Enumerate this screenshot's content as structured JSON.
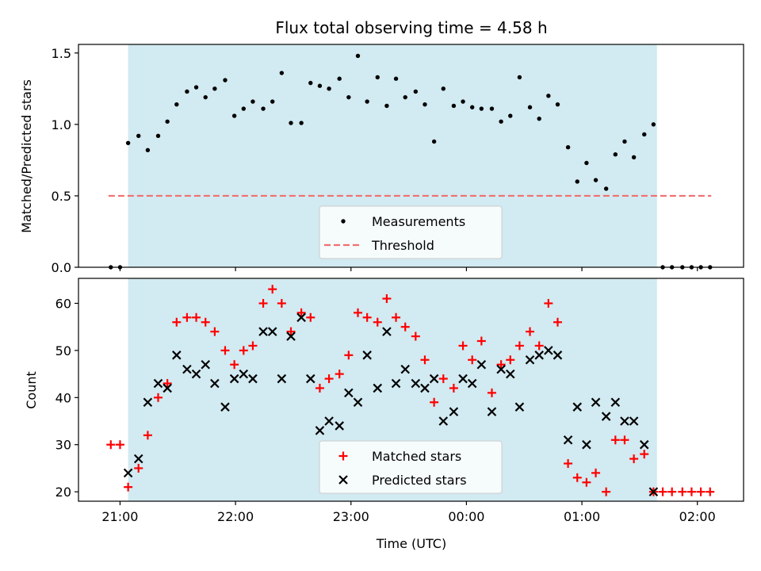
{
  "title": "Flux total observing time = 4.58 h",
  "colors": {
    "shade": "#add8e6",
    "measurement": "#000000",
    "threshold": "#f07070",
    "matched": "#ff0000",
    "predicted": "#000000"
  },
  "chart_data": [
    {
      "type": "scatter",
      "ylabel": "Matched/Predicted stars",
      "xlabel": "",
      "ylim": [
        0,
        1.56
      ],
      "yticks": [
        0.0,
        0.5,
        1.0,
        1.5
      ],
      "ytick_labels": [
        "0.0",
        "0.5",
        "1.0",
        "1.5"
      ],
      "shaded_span": [
        21.07,
        25.65
      ],
      "legend": {
        "placement": "lower-center",
        "entries": [
          "Measurements",
          "Threshold"
        ]
      },
      "threshold": {
        "name": "Threshold",
        "y": 0.5,
        "x_range": [
          20.9,
          26.12
        ]
      },
      "series": [
        {
          "name": "Measurements",
          "x": [
            20.92,
            21.0,
            21.07,
            21.16,
            21.24,
            21.33,
            21.41,
            21.49,
            21.58,
            21.66,
            21.74,
            21.82,
            21.91,
            21.99,
            22.07,
            22.15,
            22.24,
            22.32,
            22.4,
            22.48,
            22.57,
            22.65,
            22.73,
            22.81,
            22.9,
            22.98,
            23.06,
            23.14,
            23.23,
            23.31,
            23.39,
            23.47,
            23.56,
            23.64,
            23.72,
            23.8,
            23.89,
            23.97,
            24.05,
            24.13,
            24.22,
            24.3,
            24.38,
            24.46,
            24.55,
            24.63,
            24.71,
            24.79,
            24.88,
            24.96,
            25.04,
            25.12,
            25.21,
            25.29,
            25.37,
            25.45,
            25.54,
            25.62,
            25.7,
            25.78,
            25.87,
            25.95,
            26.03,
            26.11
          ],
          "y": [
            0.0,
            0.0,
            0.87,
            0.92,
            0.82,
            0.92,
            1.02,
            1.14,
            1.23,
            1.26,
            1.19,
            1.25,
            1.31,
            1.06,
            1.11,
            1.16,
            1.11,
            1.16,
            1.36,
            1.01,
            1.01,
            1.29,
            1.27,
            1.25,
            1.32,
            1.19,
            1.48,
            1.16,
            1.33,
            1.13,
            1.32,
            1.19,
            1.23,
            1.14,
            0.88,
            1.25,
            1.13,
            1.16,
            1.12,
            1.11,
            1.11,
            1.02,
            1.06,
            1.33,
            1.12,
            1.04,
            1.2,
            1.14,
            0.84,
            0.6,
            0.73,
            0.61,
            0.55,
            0.79,
            0.88,
            0.77,
            0.93,
            1.0,
            0.0,
            0.0,
            0.0,
            0.0,
            0.0,
            0.0
          ]
        }
      ]
    },
    {
      "type": "scatter",
      "ylabel": "Count",
      "xlabel": "Time (UTC)",
      "ylim": [
        18,
        65.3
      ],
      "yticks": [
        20,
        30,
        40,
        50,
        60
      ],
      "ytick_labels": [
        "20",
        "30",
        "40",
        "50",
        "60"
      ],
      "xlim": [
        20.64,
        26.4
      ],
      "xticks": [
        21,
        22,
        23,
        24,
        25,
        26
      ],
      "xtick_labels": [
        "21:00",
        "22:00",
        "23:00",
        "00:00",
        "01:00",
        "02:00"
      ],
      "shaded_span": [
        21.07,
        25.65
      ],
      "legend": {
        "placement": "lower-center",
        "entries": [
          "Matched stars",
          "Predicted stars"
        ]
      },
      "series": [
        {
          "name": "Matched stars",
          "x": [
            20.92,
            21.0,
            21.07,
            21.16,
            21.24,
            21.33,
            21.41,
            21.49,
            21.58,
            21.66,
            21.74,
            21.82,
            21.91,
            21.99,
            22.07,
            22.15,
            22.24,
            22.32,
            22.4,
            22.48,
            22.57,
            22.65,
            22.73,
            22.81,
            22.9,
            22.98,
            23.06,
            23.14,
            23.23,
            23.31,
            23.39,
            23.47,
            23.56,
            23.64,
            23.72,
            23.8,
            23.89,
            23.97,
            24.05,
            24.13,
            24.22,
            24.3,
            24.38,
            24.46,
            24.55,
            24.63,
            24.71,
            24.79,
            24.88,
            24.96,
            25.04,
            25.12,
            25.21,
            25.29,
            25.37,
            25.45,
            25.54,
            25.62,
            25.7,
            25.78,
            25.87,
            25.95,
            26.03,
            26.11
          ],
          "y": [
            30,
            30,
            21,
            25,
            32,
            40,
            43,
            56,
            57,
            57,
            56,
            54,
            50,
            47,
            50,
            51,
            60,
            63,
            60,
            54,
            58,
            57,
            42,
            44,
            45,
            49,
            58,
            57,
            56,
            61,
            57,
            55,
            53,
            48,
            39,
            44,
            42,
            51,
            48,
            52,
            41,
            47,
            48,
            51,
            54,
            51,
            60,
            56,
            26,
            23,
            22,
            24,
            20,
            31,
            31,
            27,
            28,
            20,
            20,
            20,
            20,
            20,
            20,
            20
          ]
        },
        {
          "name": "Predicted stars",
          "x": [
            21.07,
            21.16,
            21.24,
            21.33,
            21.41,
            21.49,
            21.58,
            21.66,
            21.74,
            21.82,
            21.91,
            21.99,
            22.07,
            22.15,
            22.24,
            22.32,
            22.4,
            22.48,
            22.57,
            22.65,
            22.73,
            22.81,
            22.9,
            22.98,
            23.06,
            23.14,
            23.23,
            23.31,
            23.39,
            23.47,
            23.56,
            23.64,
            23.72,
            23.8,
            23.89,
            23.97,
            24.05,
            24.13,
            24.22,
            24.3,
            24.38,
            24.46,
            24.55,
            24.63,
            24.71,
            24.79,
            24.88,
            24.96,
            25.04,
            25.12,
            25.21,
            25.29,
            25.37,
            25.45,
            25.54,
            25.62
          ],
          "y": [
            24,
            27,
            39,
            43,
            42,
            49,
            46,
            45,
            47,
            43,
            38,
            44,
            45,
            44,
            54,
            54,
            44,
            53,
            57,
            44,
            33,
            35,
            34,
            41,
            39,
            49,
            42,
            54,
            43,
            46,
            43,
            42,
            44,
            35,
            37,
            44,
            43,
            47,
            37,
            46,
            45,
            38,
            48,
            49,
            50,
            49,
            31,
            38,
            30,
            39,
            36,
            39,
            35,
            35,
            30,
            20
          ]
        }
      ]
    }
  ]
}
